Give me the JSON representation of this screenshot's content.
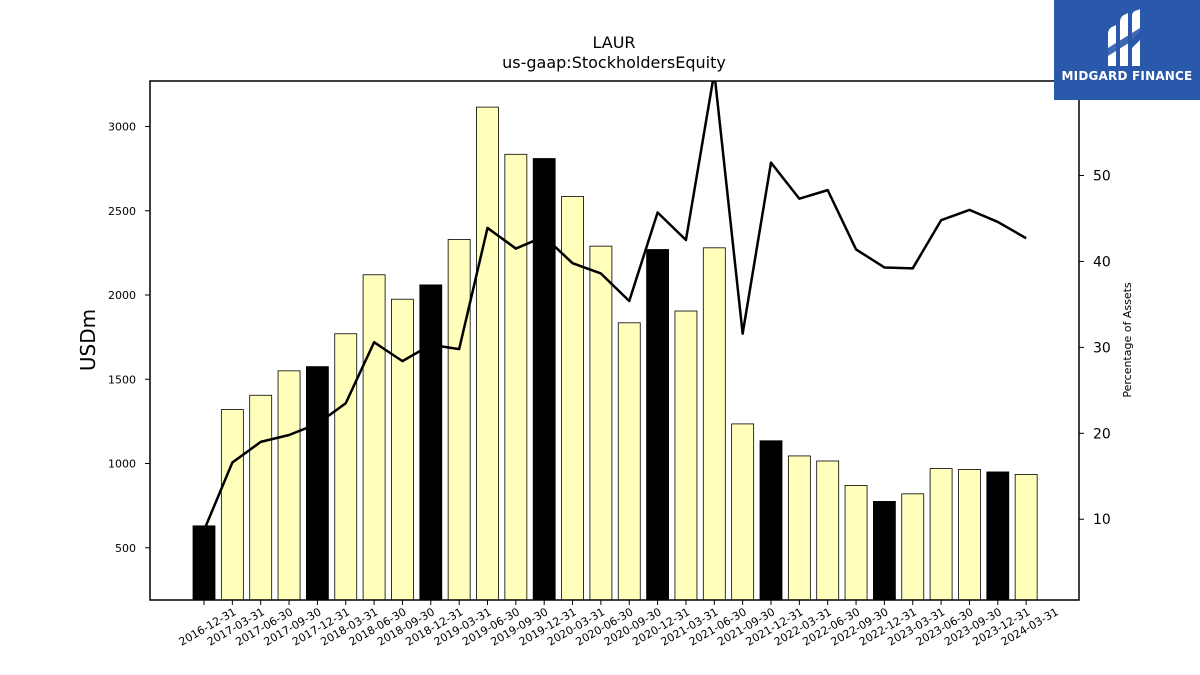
{
  "chart_data": {
    "type": "bar",
    "title": "LAUR",
    "subtitle": "us-gaap:StockholdersEquity",
    "ylabel": "USDm",
    "y2label": "Percentage of Assets",
    "ylim": [
      190,
      3270
    ],
    "y2lim": [
      0.6,
      61
    ],
    "yticks": [
      500,
      1000,
      1500,
      2000,
      2500,
      3000
    ],
    "y2ticks": [
      10,
      20,
      30,
      40,
      50
    ],
    "categories": [
      "2016-12-31",
      "2017-03-31",
      "2017-06-30",
      "2017-09-30",
      "2017-12-31",
      "2018-03-31",
      "2018-06-30",
      "2018-09-30",
      "2018-12-31",
      "2019-03-31",
      "2019-06-30",
      "2019-09-30",
      "2019-12-31",
      "2020-03-31",
      "2020-06-30",
      "2020-09-30",
      "2020-12-31",
      "2021-03-31",
      "2021-06-30",
      "2021-09-30",
      "2021-12-31",
      "2022-03-31",
      "2022-06-30",
      "2022-09-30",
      "2022-12-31",
      "2023-03-31",
      "2023-06-30",
      "2023-09-30",
      "2023-12-31",
      "2024-03-31"
    ],
    "values": [
      630,
      1320,
      1405,
      1550,
      1575,
      1770,
      2120,
      1975,
      2060,
      2330,
      3115,
      2835,
      2810,
      2585,
      2290,
      1835,
      2270,
      1905,
      2280,
      1235,
      1135,
      1045,
      1015,
      870,
      775,
      820,
      970,
      965,
      950,
      935
    ],
    "highlight": [
      true,
      false,
      false,
      false,
      true,
      false,
      false,
      false,
      true,
      false,
      false,
      false,
      true,
      false,
      false,
      false,
      true,
      false,
      false,
      false,
      true,
      false,
      false,
      false,
      true,
      false,
      false,
      false,
      true,
      false
    ],
    "series": [
      {
        "values": [
          8.7,
          16.6,
          19.0,
          19.8,
          21.1,
          23.5,
          30.6,
          28.4,
          30.3,
          29.8,
          43.9,
          41.5,
          42.9,
          39.8,
          38.6,
          35.4,
          45.7,
          42.5,
          62.0,
          31.6,
          51.5,
          47.3,
          48.3,
          41.4,
          39.3,
          39.2,
          44.8,
          46.0,
          44.6,
          42.7
        ]
      }
    ],
    "colors": {
      "bar": "#ffffbb",
      "bar_highlight": "#000000",
      "line": "#000000"
    }
  },
  "logo": {
    "text": "MIDGARD FINANCE"
  }
}
